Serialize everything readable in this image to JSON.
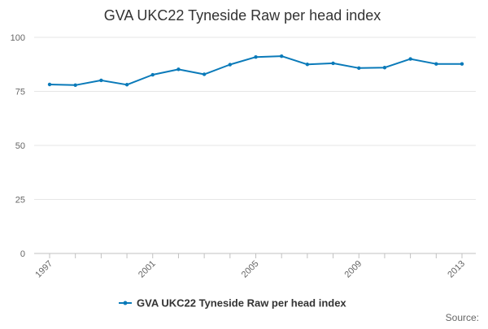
{
  "chart_data": {
    "type": "line",
    "title": "GVA UKC22 Tyneside Raw per head index",
    "xlabel": "",
    "ylabel": "",
    "x": [
      1997,
      1998,
      1999,
      2000,
      2001,
      2002,
      2003,
      2004,
      2005,
      2006,
      2007,
      2008,
      2009,
      2010,
      2011,
      2012,
      2013
    ],
    "series": [
      {
        "name": "GVA UKC22 Tyneside Raw per head index",
        "color": "#0a7ab9",
        "values": [
          78.2,
          77.9,
          80.1,
          78.1,
          82.7,
          85.2,
          82.9,
          87.4,
          90.9,
          91.3,
          87.5,
          88.0,
          85.8,
          86.0,
          90.0,
          87.7,
          87.7
        ]
      }
    ],
    "x_tick_labels": [
      "1997",
      "2001",
      "2005",
      "2009",
      "2013"
    ],
    "y_ticks": [
      0,
      25,
      50,
      75,
      100
    ],
    "y_tick_labels": [
      "0",
      "25",
      "50",
      "75",
      "100"
    ],
    "xlim": [
      1997,
      2013
    ],
    "ylim": [
      0,
      100
    ],
    "grid": true,
    "legend_position": "bottom-center"
  },
  "source_label": "Source:"
}
